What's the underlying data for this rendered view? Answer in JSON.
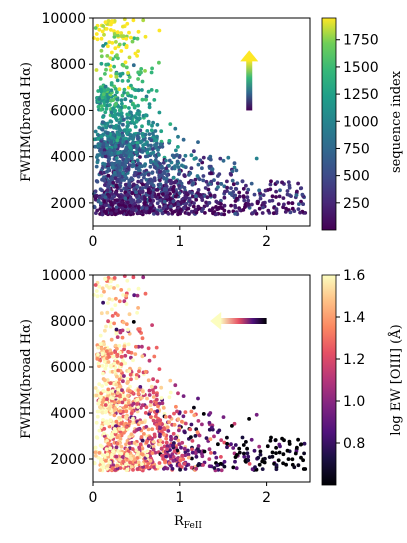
{
  "chart_data": [
    {
      "type": "scatter",
      "ylabel": "FWHM(broad Hα)",
      "xlabel": "",
      "xlim": [
        0,
        2.5
      ],
      "ylim": [
        1000,
        10000
      ],
      "xticks": [
        "0",
        "1",
        "2"
      ],
      "xtick_values": [
        0,
        1,
        2
      ],
      "yticks": [
        "2000",
        "4000",
        "6000",
        "8000",
        "10000"
      ],
      "ytick_values": [
        2000,
        4000,
        6000,
        8000,
        10000
      ],
      "colorbar": {
        "label": "sequence index",
        "colormap": "viridis",
        "range": [
          0,
          1950
        ],
        "ticks": [
          "250",
          "500",
          "750",
          "1000",
          "1250",
          "1500",
          "1750"
        ],
        "tick_values": [
          250,
          500,
          750,
          1000,
          1250,
          1500,
          1750
        ]
      },
      "arrow": {
        "direction": "up",
        "from": [
          1.8,
          6000
        ],
        "to": [
          1.8,
          8600
        ]
      },
      "point_count": 1900,
      "trend": "sequence index increases with FWHM(broad Hα); low-index objects cluster near 1500-2500 km/s"
    },
    {
      "type": "scatter",
      "ylabel": "FWHM(broad Hα)",
      "xlabel": "R",
      "xlabel_sub": "FeII",
      "xlim": [
        0,
        2.5
      ],
      "ylim": [
        1000,
        10000
      ],
      "xticks": [
        "0",
        "1",
        "2"
      ],
      "xtick_values": [
        0,
        1,
        2
      ],
      "yticks": [
        "2000",
        "4000",
        "6000",
        "8000",
        "10000"
      ],
      "ytick_values": [
        2000,
        4000,
        6000,
        8000,
        10000
      ],
      "colorbar": {
        "label": "log EW [OIII] (Å)",
        "colormap": "magma",
        "range": [
          0.6,
          1.6
        ],
        "ticks": [
          "0.8",
          "1.0",
          "1.2",
          "1.4",
          "1.6"
        ],
        "tick_values": [
          0.8,
          1.0,
          1.2,
          1.4,
          1.6
        ]
      },
      "arrow": {
        "direction": "left",
        "from": [
          2.0,
          8000
        ],
        "to": [
          1.35,
          8000
        ]
      },
      "point_count": 1300,
      "trend": "log EW [OIII] decreases with increasing R_FeII"
    }
  ]
}
